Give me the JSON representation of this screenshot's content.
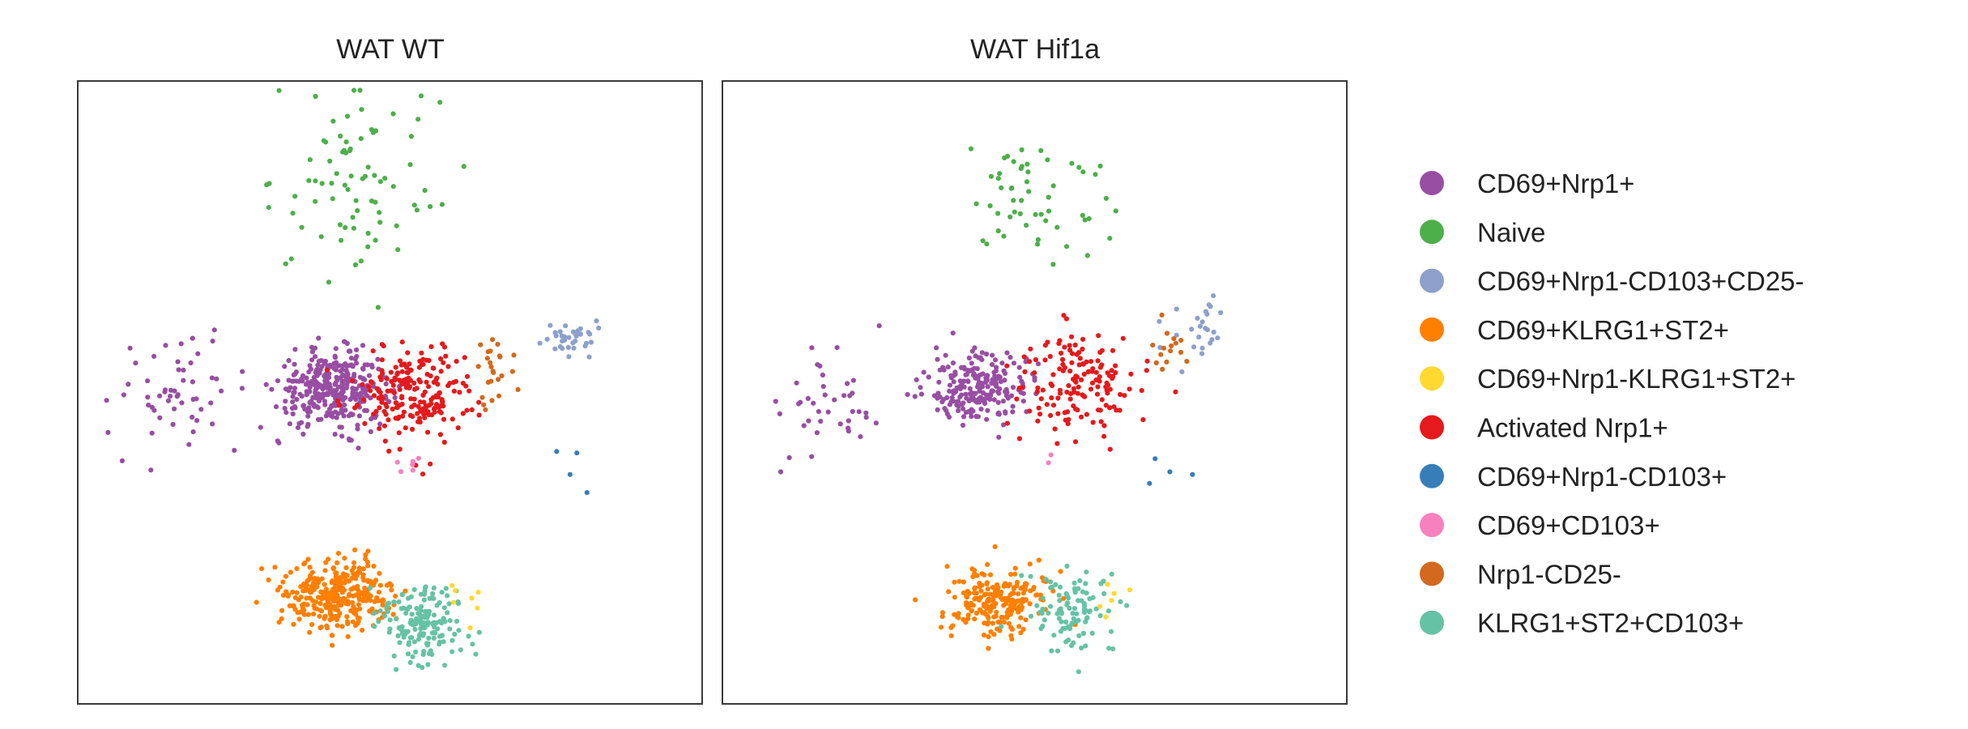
{
  "chart_data": [
    {
      "type": "scatter",
      "title": "WAT WT",
      "xlabel": "",
      "ylabel": "",
      "xlim": [
        -10,
        10
      ],
      "ylim": [
        -10,
        10
      ],
      "grid": false,
      "legend": "none",
      "clusters": [
        {
          "name": "CD69+Nrp1+",
          "center": [
            -1.8,
            0.1
          ],
          "spread": [
            1.5,
            1.0
          ],
          "count": 340
        },
        {
          "name": "CD69+Nrp1+ (left)",
          "cluster": "CD69+Nrp1+",
          "center": [
            -6.8,
            0.0
          ],
          "spread": [
            1.6,
            1.6
          ],
          "count": 55
        },
        {
          "name": "Naive",
          "center": [
            -1.0,
            6.8
          ],
          "spread": [
            2.2,
            2.6
          ],
          "count": 80
        },
        {
          "name": "CD69+Nrp1-CD103+CD25-",
          "center": [
            5.7,
            1.8
          ],
          "spread": [
            0.7,
            0.5
          ],
          "count": 35
        },
        {
          "name": "Activated Nrp1+",
          "center": [
            0.8,
            0.0
          ],
          "spread": [
            1.6,
            1.3
          ],
          "count": 210
        },
        {
          "name": "Nrp1-CD25-",
          "center": [
            3.4,
            0.8
          ],
          "spread": [
            0.6,
            1.2
          ],
          "count": 25
        },
        {
          "name": "CD69+KLRG1+ST2+",
          "center": [
            -1.6,
            -6.5
          ],
          "spread": [
            1.4,
            0.9
          ],
          "count": 330
        },
        {
          "name": "KLRG1+ST2+CD103+",
          "center": [
            1.0,
            -7.4
          ],
          "spread": [
            1.2,
            1.1
          ],
          "count": 160
        },
        {
          "name": "CD69+Nrp1-KLRG1+ST2+",
          "center": [
            2.4,
            -6.4
          ],
          "spread": [
            1.0,
            0.6
          ],
          "count": 7
        },
        {
          "name": "CD69+CD103+",
          "center": [
            0.6,
            -2.3
          ],
          "spread": [
            0.3,
            0.3
          ],
          "count": 6
        },
        {
          "name": "CD69+Nrp1-CD103+",
          "center": [
            5.0,
            -2.5
          ],
          "spread": [
            1.5,
            1.0
          ],
          "count": 4
        }
      ]
    },
    {
      "type": "scatter",
      "title": "WAT Hif1a",
      "xlabel": "",
      "ylabel": "",
      "xlim": [
        -10,
        10
      ],
      "ylim": [
        -10,
        10
      ],
      "grid": false,
      "legend": "none",
      "clusters": [
        {
          "name": "CD69+Nrp1+",
          "center": [
            -1.8,
            0.2
          ],
          "spread": [
            1.3,
            0.9
          ],
          "count": 230
        },
        {
          "name": "CD69+Nrp1+ (left)",
          "cluster": "CD69+Nrp1+",
          "center": [
            -6.8,
            -0.2
          ],
          "spread": [
            1.5,
            1.6
          ],
          "count": 40
        },
        {
          "name": "Naive",
          "center": [
            0.0,
            6.3
          ],
          "spread": [
            2.0,
            2.2
          ],
          "count": 55
        },
        {
          "name": "CD69+Nrp1-CD103+CD25-",
          "center": [
            5.3,
            2.0
          ],
          "spread": [
            0.8,
            0.8
          ],
          "count": 25
        },
        {
          "name": "Activated Nrp1+",
          "center": [
            1.5,
            0.3
          ],
          "spread": [
            1.6,
            1.4
          ],
          "count": 150
        },
        {
          "name": "Nrp1-CD25-",
          "center": [
            4.3,
            1.5
          ],
          "spread": [
            0.6,
            1.0
          ],
          "count": 15
        },
        {
          "name": "CD69+KLRG1+ST2+",
          "center": [
            -1.2,
            -6.7
          ],
          "spread": [
            1.3,
            0.9
          ],
          "count": 220
        },
        {
          "name": "KLRG1+ST2+CD103+",
          "center": [
            1.2,
            -7.1
          ],
          "spread": [
            1.1,
            1.1
          ],
          "count": 100
        },
        {
          "name": "CD69+Nrp1-KLRG1+ST2+",
          "center": [
            2.5,
            -6.7
          ],
          "spread": [
            0.9,
            0.6
          ],
          "count": 6
        },
        {
          "name": "CD69+CD103+",
          "center": [
            0.6,
            -2.3
          ],
          "spread": [
            0.3,
            0.3
          ],
          "count": 2
        },
        {
          "name": "CD69+Nrp1-CD103+",
          "center": [
            4.5,
            -2.5
          ],
          "spread": [
            1.5,
            1.0
          ],
          "count": 4
        }
      ]
    }
  ],
  "legend": {
    "items": [
      {
        "label": "CD69+Nrp1+",
        "color": "#984ea3"
      },
      {
        "label": "Naive",
        "color": "#4daf4a"
      },
      {
        "label": "CD69+Nrp1-CD103+CD25-",
        "color": "#8da0cb"
      },
      {
        "label": "CD69+KLRG1+ST2+",
        "color": "#ff7f00"
      },
      {
        "label": "CD69+Nrp1-KLRG1+ST2+",
        "color": "#ffd92f"
      },
      {
        "label": "Activated Nrp1+",
        "color": "#e41a1c"
      },
      {
        "label": "CD69+Nrp1-CD103+",
        "color": "#377eb8"
      },
      {
        "label": "CD69+CD103+",
        "color": "#f781bf"
      },
      {
        "label": "Nrp1-CD25-",
        "color": "#d2691e"
      },
      {
        "label": "KLRG1+ST2+CD103+",
        "color": "#66c2a5"
      }
    ]
  }
}
